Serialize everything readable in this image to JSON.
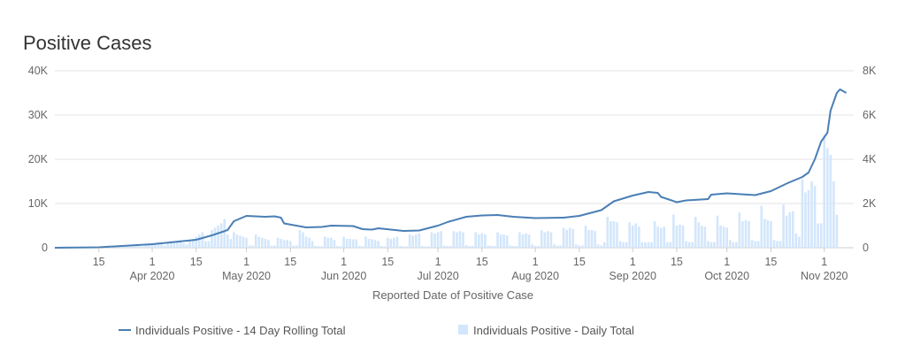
{
  "chart_data": {
    "type": "bar+line",
    "title": "Positive Cases",
    "xlabel": "Reported Date of Positive Case",
    "start_date": "2020-03-01",
    "end_date": "2020-11-08",
    "x_ticks": [
      {
        "day": 14,
        "label": "15",
        "month": ""
      },
      {
        "day": 31,
        "label": "1",
        "month": "Apr 2020"
      },
      {
        "day": 45,
        "label": "15",
        "month": ""
      },
      {
        "day": 61,
        "label": "1",
        "month": "May 2020"
      },
      {
        "day": 75,
        "label": "15",
        "month": ""
      },
      {
        "day": 92,
        "label": "1",
        "month": "Jun 2020"
      },
      {
        "day": 106,
        "label": "15",
        "month": ""
      },
      {
        "day": 122,
        "label": "1",
        "month": "Jul 2020"
      },
      {
        "day": 136,
        "label": "15",
        "month": ""
      },
      {
        "day": 153,
        "label": "1",
        "month": "Aug 2020"
      },
      {
        "day": 167,
        "label": "15",
        "month": ""
      },
      {
        "day": 184,
        "label": "1",
        "month": "Sep 2020"
      },
      {
        "day": 198,
        "label": "15",
        "month": ""
      },
      {
        "day": 214,
        "label": "1",
        "month": "Oct 2020"
      },
      {
        "day": 228,
        "label": "15",
        "month": ""
      },
      {
        "day": 245,
        "label": "1",
        "month": "Nov 2020"
      }
    ],
    "y_left": {
      "ylim": [
        0,
        40000
      ],
      "ticks": [
        {
          "v": 0,
          "label": "0"
        },
        {
          "v": 10000,
          "label": "10K"
        },
        {
          "v": 20000,
          "label": "20K"
        },
        {
          "v": 30000,
          "label": "30K"
        },
        {
          "v": 40000,
          "label": "40K"
        }
      ]
    },
    "y_right": {
      "ylim": [
        0,
        8000
      ],
      "ticks": [
        {
          "v": 0,
          "label": "0"
        },
        {
          "v": 2000,
          "label": "2K"
        },
        {
          "v": 4000,
          "label": "4K"
        },
        {
          "v": 6000,
          "label": "6K"
        },
        {
          "v": 8000,
          "label": "8K"
        }
      ]
    },
    "series": [
      {
        "name": "Individuals Positive - 14 Day Rolling Total",
        "type": "line",
        "axis": "left",
        "color": "#4a7fb5",
        "points": [
          [
            0,
            0
          ],
          [
            14,
            100
          ],
          [
            31,
            800
          ],
          [
            45,
            1800
          ],
          [
            50,
            2800
          ],
          [
            55,
            4000
          ],
          [
            57,
            6000
          ],
          [
            61,
            7200
          ],
          [
            67,
            7000
          ],
          [
            70,
            7100
          ],
          [
            72,
            6800
          ],
          [
            73,
            5500
          ],
          [
            80,
            4600
          ],
          [
            85,
            4700
          ],
          [
            88,
            5000
          ],
          [
            95,
            4900
          ],
          [
            98,
            4200
          ],
          [
            101,
            4100
          ],
          [
            103,
            4400
          ],
          [
            111,
            3800
          ],
          [
            116,
            3900
          ],
          [
            122,
            5000
          ],
          [
            125,
            5800
          ],
          [
            131,
            7000
          ],
          [
            136,
            7300
          ],
          [
            141,
            7400
          ],
          [
            146,
            7000
          ],
          [
            153,
            6700
          ],
          [
            162,
            6800
          ],
          [
            167,
            7200
          ],
          [
            174,
            8500
          ],
          [
            178,
            10500
          ],
          [
            184,
            11800
          ],
          [
            189,
            12600
          ],
          [
            192,
            12400
          ],
          [
            193,
            11500
          ],
          [
            198,
            10300
          ],
          [
            201,
            10700
          ],
          [
            208,
            11000
          ],
          [
            209,
            12000
          ],
          [
            214,
            12300
          ],
          [
            223,
            11900
          ],
          [
            228,
            12800
          ],
          [
            233,
            14500
          ],
          [
            238,
            16000
          ],
          [
            240,
            17000
          ],
          [
            242,
            20000
          ],
          [
            244,
            24000
          ],
          [
            246,
            26000
          ],
          [
            247,
            31000
          ],
          [
            249,
            35000
          ],
          [
            250,
            35800
          ],
          [
            252,
            35000
          ]
        ]
      },
      {
        "name": "Individuals Positive - Daily Total",
        "type": "bar",
        "axis": "right",
        "color": "#d3e6fb",
        "values": [
          0,
          0,
          0,
          0,
          0,
          0,
          0,
          0,
          0,
          5,
          10,
          10,
          20,
          20,
          20,
          30,
          40,
          40,
          60,
          60,
          50,
          40,
          80,
          90,
          100,
          110,
          120,
          80,
          60,
          150,
          180,
          200,
          220,
          250,
          150,
          100,
          250,
          300,
          300,
          320,
          350,
          200,
          150,
          350,
          400,
          500,
          600,
          700,
          300,
          300,
          800,
          900,
          1000,
          1100,
          1300,
          600,
          400,
          700,
          600,
          550,
          500,
          450,
          100,
          100,
          600,
          500,
          450,
          400,
          350,
          100,
          100,
          450,
          400,
          350,
          350,
          300,
          100,
          100,
          800,
          700,
          500,
          450,
          300,
          80,
          80,
          60,
          500,
          450,
          450,
          350,
          80,
          60,
          500,
          400,
          400,
          380,
          380,
          80,
          60,
          500,
          400,
          380,
          350,
          300,
          80,
          60,
          450,
          400,
          450,
          500,
          80,
          60,
          60,
          600,
          550,
          600,
          650,
          80,
          60,
          60,
          700,
          650,
          700,
          750,
          100,
          80,
          80,
          750,
          700,
          750,
          700,
          120,
          80,
          80,
          700,
          600,
          650,
          600,
          100,
          80,
          80,
          700,
          600,
          600,
          550,
          100,
          80,
          80,
          700,
          600,
          650,
          600,
          150,
          80,
          80,
          800,
          700,
          750,
          700,
          150,
          100,
          100,
          900,
          800,
          900,
          850,
          150,
          100,
          100,
          1000,
          800,
          800,
          750,
          150,
          100,
          250,
          1400,
          1200,
          1200,
          1150,
          300,
          250,
          250,
          1150,
          1000,
          1100,
          950,
          250,
          250,
          250,
          250,
          1200,
          950,
          900,
          950,
          250,
          250,
          1500,
          1000,
          1050,
          1000,
          300,
          250,
          250,
          1400,
          1150,
          1000,
          950,
          300,
          250,
          250,
          1450,
          1000,
          950,
          900,
          350,
          250,
          250,
          1600,
          1200,
          1250,
          1200,
          350,
          300,
          300,
          1900,
          1300,
          1250,
          1200,
          350,
          300,
          300,
          1950,
          1450,
          1600,
          1650,
          650,
          500,
          3100,
          2500,
          2600,
          3000,
          2800,
          1100,
          1100,
          5100,
          4500,
          4200,
          3000,
          1500,
          0,
          0
        ]
      }
    ],
    "legend": "bottom",
    "grid": true
  }
}
